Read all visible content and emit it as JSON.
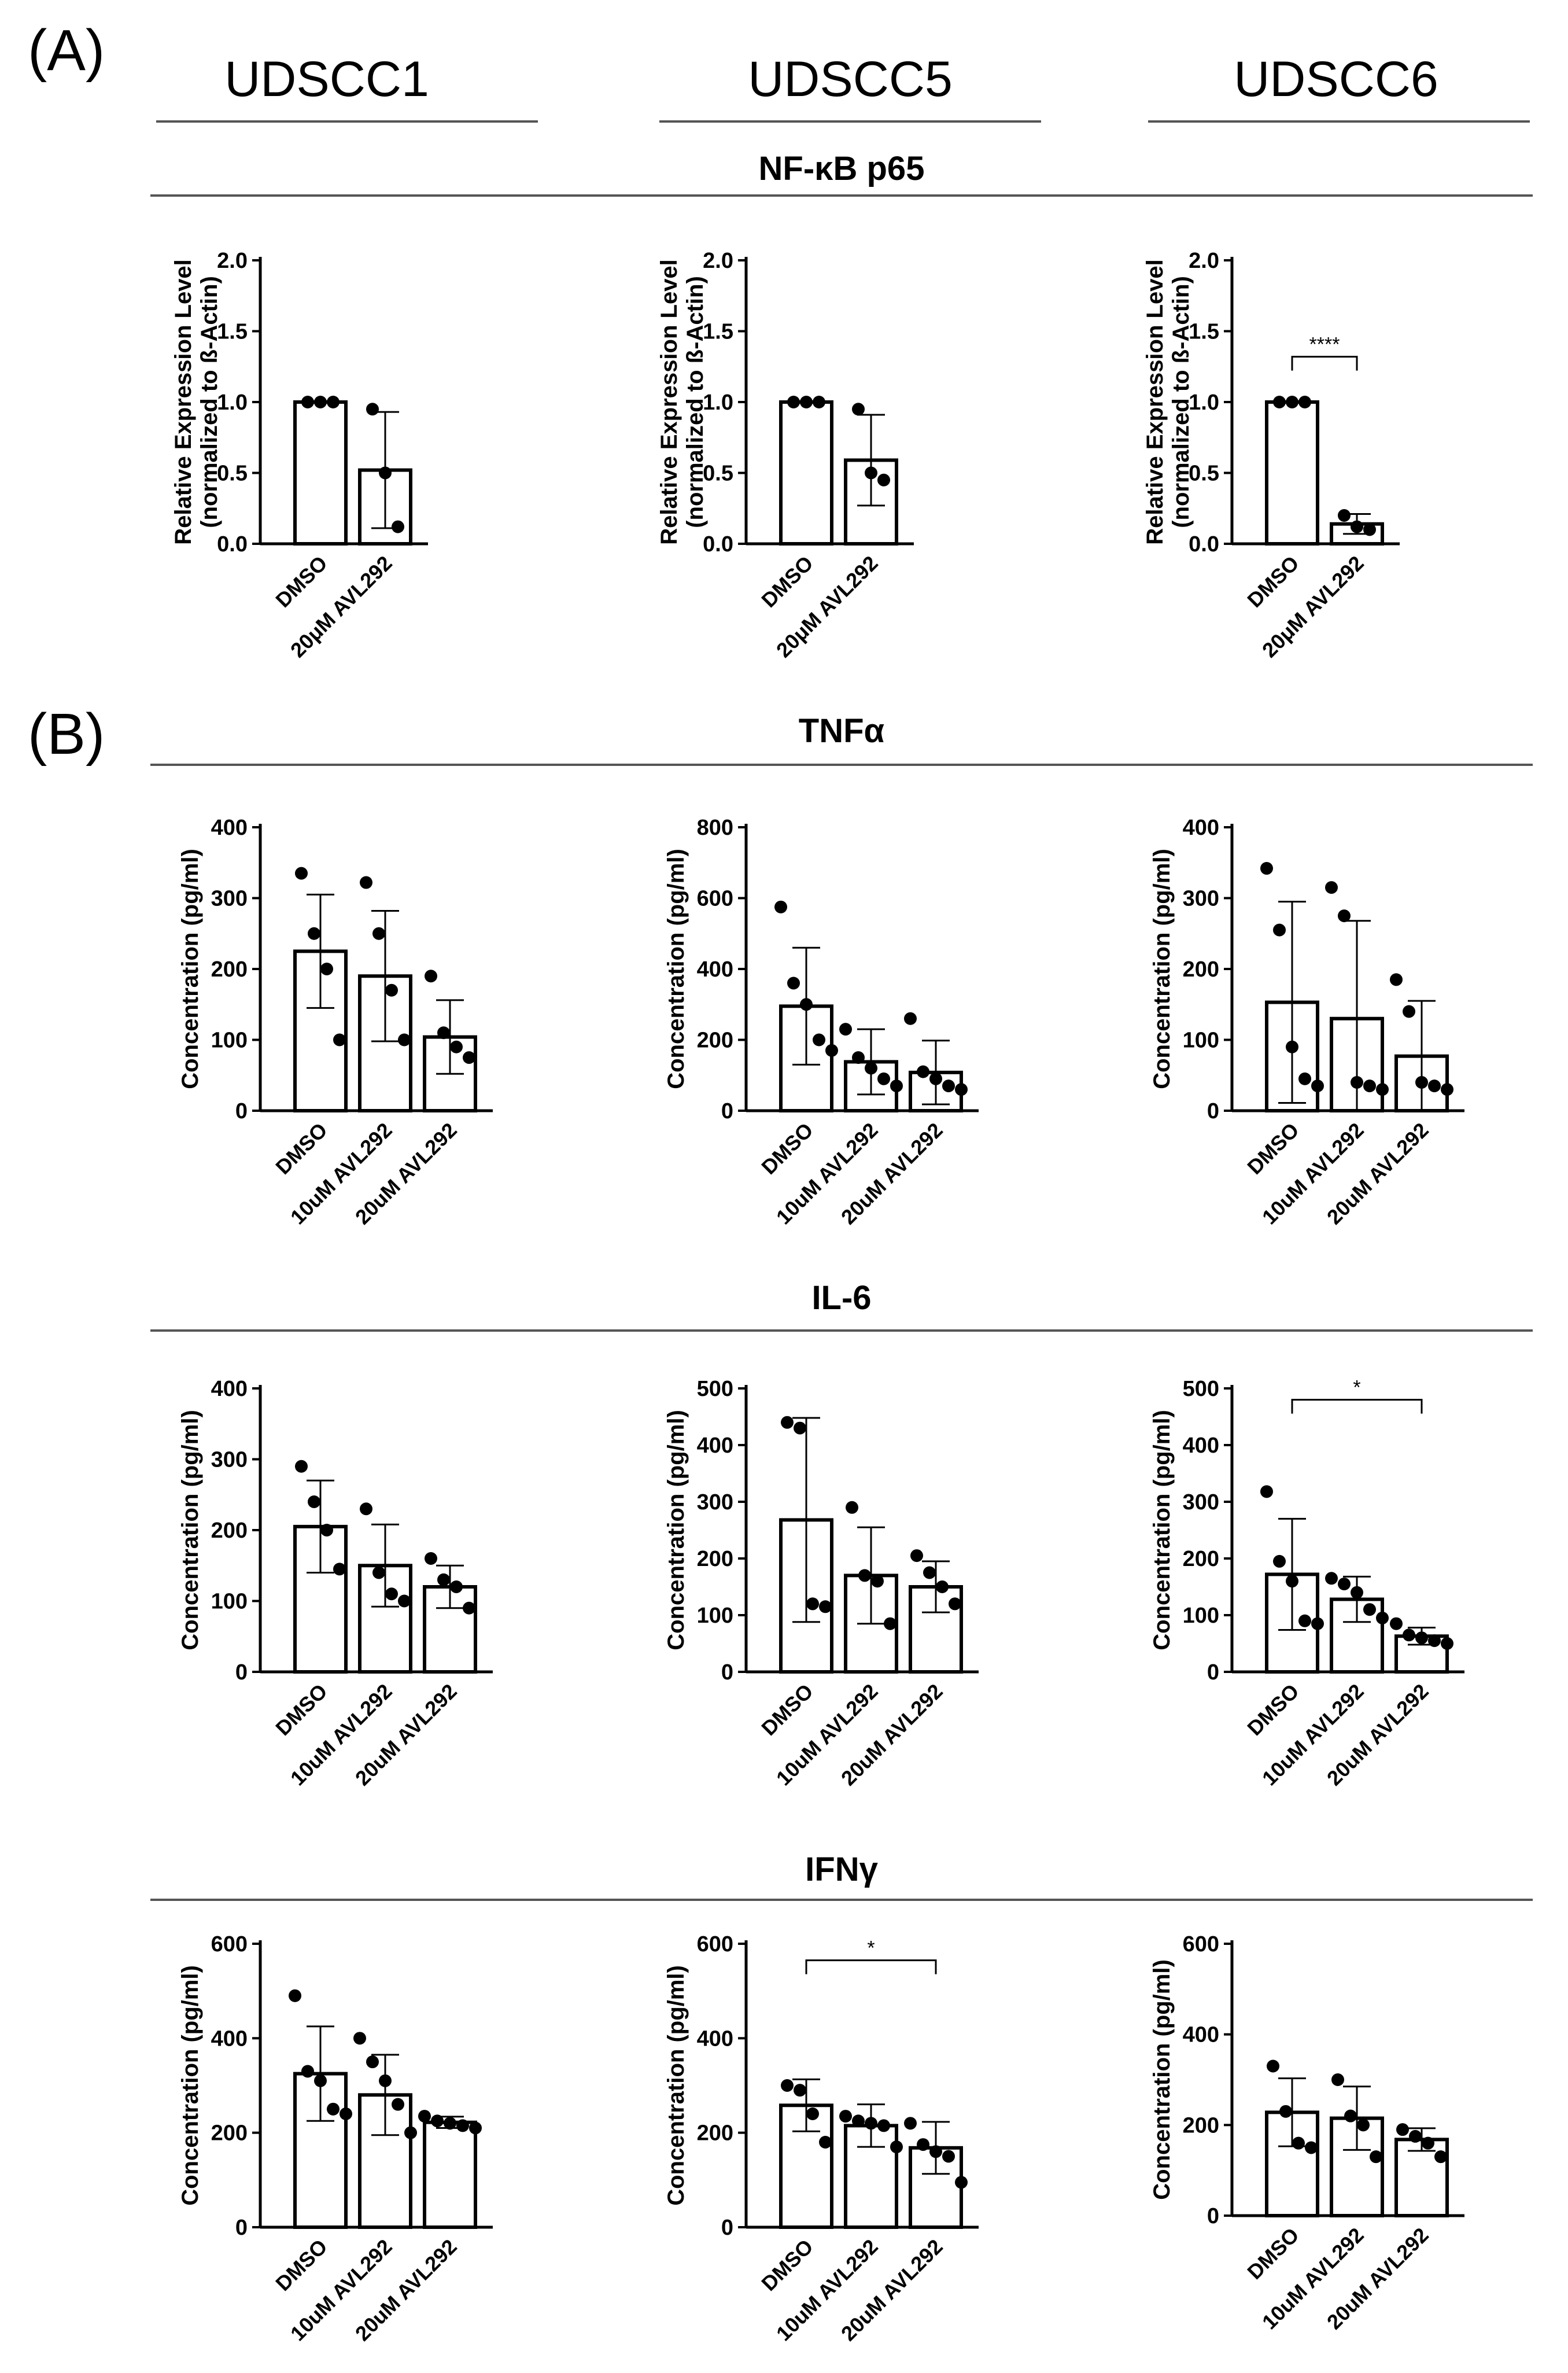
{
  "panels": {
    "a": "(A)",
    "b": "(B)"
  },
  "cell_lines": [
    "UDSCC1",
    "UDSCC5",
    "UDSCC6"
  ],
  "sections": {
    "nfkb": "NF-κB p65",
    "tnf": "TNFα",
    "il6": "IL-6",
    "ifng": "IFNγ"
  },
  "chart_data": [
    {
      "id": "c1",
      "type": "bar",
      "section": "NF-κB p65",
      "cell_line": "UDSCC1",
      "ylabel": "Relative Expression Level",
      "ylabel2": "(normalized to ß-Actin)",
      "categories": [
        "DMSO",
        "20μM AVL292"
      ],
      "values": [
        1.0,
        0.52
      ],
      "sd": [
        0.0,
        0.41
      ],
      "points": [
        [
          1.0,
          1.0,
          1.0
        ],
        [
          0.95,
          0.5,
          0.12
        ]
      ],
      "ylim": [
        0,
        2.0
      ],
      "ticks": [
        0.0,
        0.5,
        1.0,
        1.5,
        2.0
      ],
      "tick_labels": [
        "0.0",
        "0.5",
        "1.0",
        "1.5",
        "2.0"
      ],
      "sig": null
    },
    {
      "id": "c2",
      "type": "bar",
      "section": "NF-κB p65",
      "cell_line": "UDSCC5",
      "ylabel": "Relative Expression Level",
      "ylabel2": "(normalized to ß-Actin)",
      "categories": [
        "DMSO",
        "20μM AVL292"
      ],
      "values": [
        1.0,
        0.59
      ],
      "sd": [
        0.0,
        0.32
      ],
      "points": [
        [
          1.0,
          1.0,
          1.0
        ],
        [
          0.95,
          0.5,
          0.45
        ]
      ],
      "ylim": [
        0,
        2.0
      ],
      "ticks": [
        0.0,
        0.5,
        1.0,
        1.5,
        2.0
      ],
      "tick_labels": [
        "0.0",
        "0.5",
        "1.0",
        "1.5",
        "2.0"
      ],
      "sig": null
    },
    {
      "id": "c3",
      "type": "bar",
      "section": "NF-κB p65",
      "cell_line": "UDSCC6",
      "ylabel": "Relative Expression Level",
      "ylabel2": "(normalized to ß-Actin)",
      "categories": [
        "DMSO",
        "20μM AVL292"
      ],
      "values": [
        1.0,
        0.14
      ],
      "sd": [
        0.0,
        0.07
      ],
      "points": [
        [
          1.0,
          1.0,
          1.0
        ],
        [
          0.2,
          0.12,
          0.1
        ]
      ],
      "ylim": [
        0,
        2.0
      ],
      "ticks": [
        0.0,
        0.5,
        1.0,
        1.5,
        2.0
      ],
      "tick_labels": [
        "0.0",
        "0.5",
        "1.0",
        "1.5",
        "2.0"
      ],
      "sig": {
        "from": 0,
        "to": 1,
        "y": 1.32,
        "label": "****"
      }
    },
    {
      "id": "c4",
      "type": "bar",
      "section": "TNFα",
      "cell_line": "UDSCC1",
      "ylabel": "Concentration (pg/ml)",
      "ylabel2": null,
      "categories": [
        "DMSO",
        "10uM AVL292",
        "20uM AVL292"
      ],
      "values": [
        225,
        190,
        104
      ],
      "sd": [
        80,
        92,
        52
      ],
      "points": [
        [
          335,
          250,
          200,
          100
        ],
        [
          322,
          250,
          170,
          100
        ],
        [
          190,
          110,
          90,
          75
        ]
      ],
      "ylim": [
        0,
        400
      ],
      "ticks": [
        0,
        100,
        200,
        300,
        400
      ],
      "tick_labels": [
        "0",
        "100",
        "200",
        "300",
        "400"
      ],
      "sig": null
    },
    {
      "id": "c5",
      "type": "bar",
      "section": "TNFα",
      "cell_line": "UDSCC5",
      "ylabel": "Concentration (pg/ml)",
      "ylabel2": null,
      "categories": [
        "DMSO",
        "10uM AVL292",
        "20uM AVL292"
      ],
      "values": [
        295,
        138,
        108
      ],
      "sd": [
        165,
        92,
        90
      ],
      "points": [
        [
          575,
          360,
          300,
          200,
          170
        ],
        [
          230,
          150,
          120,
          90,
          70
        ],
        [
          260,
          110,
          90,
          70,
          60
        ]
      ],
      "ylim": [
        0,
        800
      ],
      "ticks": [
        0,
        200,
        400,
        600,
        800
      ],
      "tick_labels": [
        "0",
        "200",
        "400",
        "600",
        "800"
      ],
      "sig": null
    },
    {
      "id": "c6",
      "type": "bar",
      "section": "TNFα",
      "cell_line": "UDSCC6",
      "ylabel": "Concentration (pg/ml)",
      "ylabel2": null,
      "categories": [
        "DMSO",
        "10uM AVL292",
        "20uM AVL292"
      ],
      "values": [
        153,
        130,
        77
      ],
      "sd": [
        142,
        138,
        78
      ],
      "points": [
        [
          342,
          255,
          90,
          45,
          35
        ],
        [
          315,
          275,
          40,
          35,
          30
        ],
        [
          185,
          140,
          40,
          35,
          30
        ]
      ],
      "ylim": [
        0,
        400
      ],
      "ticks": [
        0,
        100,
        200,
        300,
        400
      ],
      "tick_labels": [
        "0",
        "100",
        "200",
        "300",
        "400"
      ],
      "sig": null
    },
    {
      "id": "c7",
      "type": "bar",
      "section": "IL-6",
      "cell_line": "UDSCC1",
      "ylabel": "Concentration (pg/ml)",
      "ylabel2": null,
      "categories": [
        "DMSO",
        "10uM AVL292",
        "20uM AVL292"
      ],
      "values": [
        205,
        150,
        120
      ],
      "sd": [
        65,
        58,
        30
      ],
      "points": [
        [
          290,
          240,
          200,
          145
        ],
        [
          230,
          140,
          110,
          100
        ],
        [
          160,
          130,
          120,
          90
        ]
      ],
      "ylim": [
        0,
        400
      ],
      "ticks": [
        0,
        100,
        200,
        300,
        400
      ],
      "tick_labels": [
        "0",
        "100",
        "200",
        "300",
        "400"
      ],
      "sig": null
    },
    {
      "id": "c8",
      "type": "bar",
      "section": "IL-6",
      "cell_line": "UDSCC5",
      "ylabel": "Concentration (pg/ml)",
      "ylabel2": null,
      "categories": [
        "DMSO",
        "10uM AVL292",
        "20uM AVL292"
      ],
      "values": [
        268,
        170,
        150
      ],
      "sd": [
        180,
        85,
        45
      ],
      "points": [
        [
          440,
          430,
          120,
          115
        ],
        [
          290,
          170,
          160,
          85
        ],
        [
          205,
          175,
          150,
          120
        ]
      ],
      "ylim": [
        0,
        500
      ],
      "ticks": [
        0,
        100,
        200,
        300,
        400,
        500
      ],
      "tick_labels": [
        "0",
        "100",
        "200",
        "300",
        "400",
        "500"
      ],
      "sig": null
    },
    {
      "id": "c9",
      "type": "bar",
      "section": "IL-6",
      "cell_line": "UDSCC6",
      "ylabel": "Concentration (pg/ml)",
      "ylabel2": null,
      "categories": [
        "DMSO",
        "10uM AVL292",
        "20uM AVL292"
      ],
      "values": [
        172,
        128,
        63
      ],
      "sd": [
        98,
        40,
        15
      ],
      "points": [
        [
          318,
          195,
          160,
          90,
          85
        ],
        [
          165,
          155,
          140,
          110,
          95
        ],
        [
          85,
          65,
          60,
          55,
          50
        ]
      ],
      "ylim": [
        0,
        500
      ],
      "ticks": [
        0,
        100,
        200,
        300,
        400,
        500
      ],
      "tick_labels": [
        "0",
        "100",
        "200",
        "300",
        "400",
        "500"
      ],
      "sig": {
        "from": 0,
        "to": 2,
        "y": 480,
        "label": "*"
      }
    },
    {
      "id": "c10",
      "type": "bar",
      "section": "IFNγ",
      "cell_line": "UDSCC1",
      "ylabel": "Concentration (pg/ml)",
      "ylabel2": null,
      "categories": [
        "DMSO",
        "10uM AVL292",
        "20uM AVL292"
      ],
      "values": [
        325,
        280,
        222
      ],
      "sd": [
        100,
        85,
        12
      ],
      "points": [
        [
          490,
          330,
          310,
          250,
          240
        ],
        [
          400,
          350,
          310,
          260,
          200
        ],
        [
          235,
          225,
          220,
          215,
          210
        ]
      ],
      "ylim": [
        0,
        600
      ],
      "ticks": [
        0,
        200,
        400,
        600
      ],
      "tick_labels": [
        "0",
        "200",
        "400",
        "600"
      ],
      "sig": null
    },
    {
      "id": "c11",
      "type": "bar",
      "section": "IFNγ",
      "cell_line": "UDSCC5",
      "ylabel": "Concentration (pg/ml)",
      "ylabel2": null,
      "categories": [
        "DMSO",
        "10uM AVL292",
        "20uM AVL292"
      ],
      "values": [
        258,
        215,
        168
      ],
      "sd": [
        55,
        45,
        55
      ],
      "points": [
        [
          300,
          290,
          240,
          180
        ],
        [
          235,
          225,
          220,
          215,
          170
        ],
        [
          220,
          175,
          160,
          150,
          95
        ]
      ],
      "ylim": [
        0,
        600
      ],
      "ticks": [
        0,
        200,
        400,
        600
      ],
      "tick_labels": [
        "0",
        "200",
        "400",
        "600"
      ],
      "sig": {
        "from": 0,
        "to": 2,
        "y": 565,
        "label": "*"
      }
    },
    {
      "id": "c12",
      "type": "bar",
      "section": "IFNγ",
      "cell_line": "UDSCC6",
      "ylabel": "Concentration (pg/ml)",
      "ylabel2": null,
      "categories": [
        "DMSO",
        "10uM AVL292",
        "20uM AVL292"
      ],
      "values": [
        228,
        215,
        168
      ],
      "sd": [
        75,
        70,
        25
      ],
      "points": [
        [
          330,
          230,
          160,
          150
        ],
        [
          300,
          220,
          200,
          130
        ],
        [
          190,
          175,
          160,
          130
        ]
      ],
      "ylim": [
        0,
        600
      ],
      "ticks": [
        0,
        200,
        400,
        600
      ],
      "tick_labels": [
        "0",
        "200",
        "400",
        "600"
      ],
      "sig": null
    }
  ]
}
